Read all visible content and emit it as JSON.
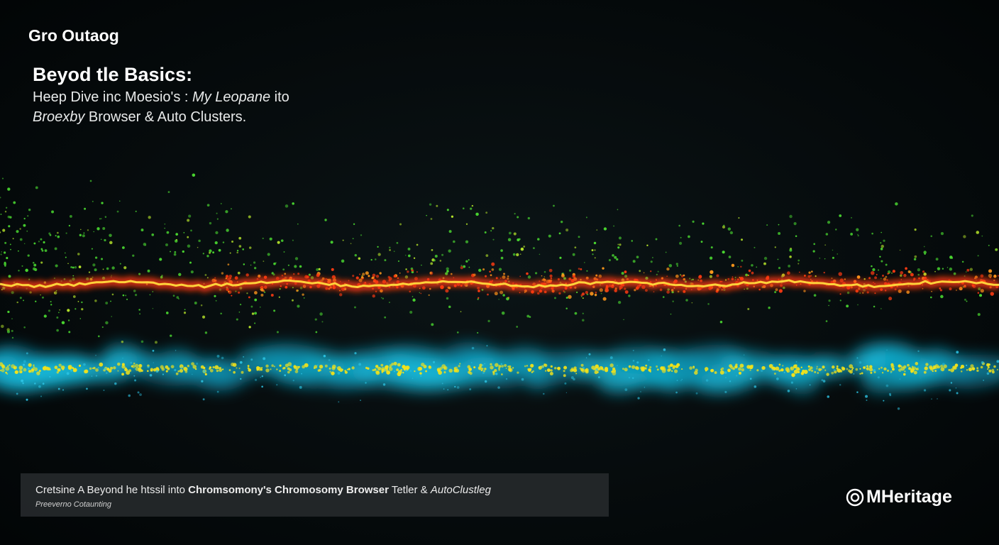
{
  "header": {
    "brand": "Gro Outaog"
  },
  "headline": {
    "title": "Beyod tle Basics:",
    "lines": [
      [
        "Heep Dive inc Moesio's : ",
        "My Leopane",
        " ito"
      ],
      [
        "Broexby",
        " Browser & Auto Clusters."
      ]
    ]
  },
  "caption": {
    "line": [
      "Cretsine A Beyond he htssil into ",
      "Chromsomony's Chromosomy Browser",
      " Tetler & ",
      "AutoClustleg"
    ],
    "sub": "Preeverno Cotaunting"
  },
  "logo": {
    "text": "MHeritage"
  }
}
